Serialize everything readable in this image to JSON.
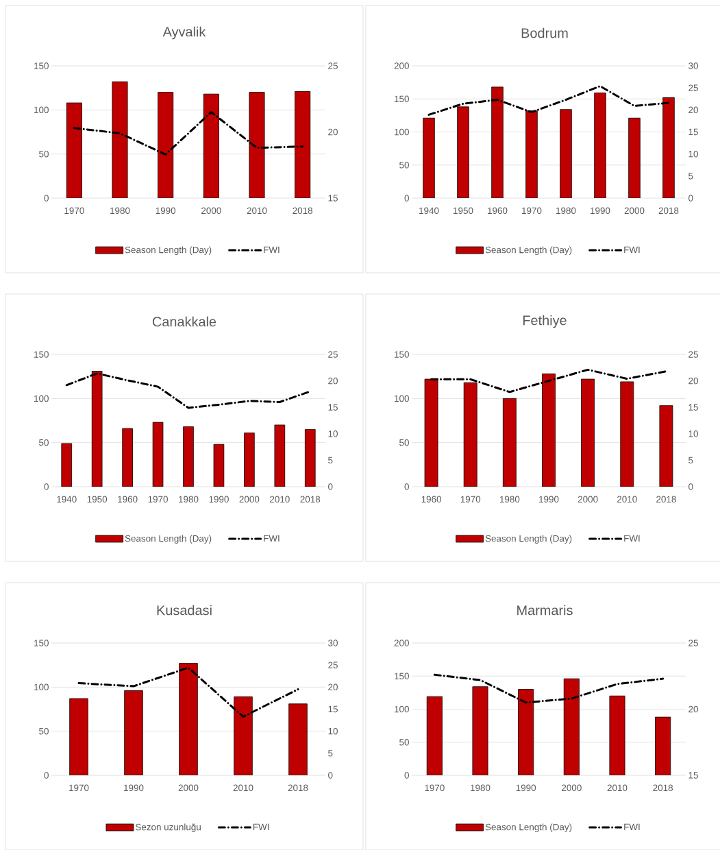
{
  "chart_data": [
    {
      "type": "bar",
      "title": "Ayvalik",
      "categories": [
        "1970",
        "1980",
        "1990",
        "2000",
        "2010",
        "2018"
      ],
      "series": [
        {
          "name": "Season Length (Day)",
          "color": "#c00000",
          "values": [
            108,
            132,
            120,
            118,
            120,
            121
          ]
        },
        {
          "name": "FWI",
          "type": "line",
          "axis": "y2",
          "color": "#000000",
          "line_style": "dashed",
          "values": [
            20.3,
            19.9,
            18.3,
            21.5,
            18.8,
            18.9
          ]
        }
      ],
      "ylim": [
        0,
        150
      ],
      "yticks": [
        0,
        50,
        100,
        150
      ],
      "y2lim": [
        15,
        25
      ],
      "y2ticks": [
        15,
        20,
        25
      ],
      "grid": "y",
      "legend": "bottom"
    },
    {
      "type": "bar",
      "title": "Bodrum",
      "categories": [
        "1940",
        "1950",
        "1960",
        "1970",
        "1980",
        "1990",
        "2000",
        "2018"
      ],
      "series": [
        {
          "name": "Season Length (Day)",
          "color": "#c00000",
          "values": [
            121,
            138,
            168,
            132,
            134,
            159,
            121,
            152
          ]
        },
        {
          "name": "FWI",
          "type": "line",
          "axis": "y2",
          "color": "#000000",
          "line_style": "dashed",
          "values": [
            18.9,
            21.4,
            22.3,
            19.5,
            22.3,
            25.4,
            20.9,
            21.6
          ]
        }
      ],
      "ylim": [
        0,
        200
      ],
      "yticks": [
        0,
        50,
        100,
        150,
        200
      ],
      "y2lim": [
        0,
        30
      ],
      "y2ticks": [
        0,
        5,
        10,
        15,
        20,
        25,
        30
      ],
      "grid": "y",
      "legend": "bottom"
    },
    {
      "type": "bar",
      "title": "Canakkale",
      "categories": [
        "1940",
        "1950",
        "1960",
        "1970",
        "1980",
        "1990",
        "2000",
        "2010",
        "2018"
      ],
      "series": [
        {
          "name": "Season Length (Day)",
          "color": "#c00000",
          "values": [
            49,
            131,
            66,
            73,
            68,
            48,
            61,
            70,
            65
          ]
        },
        {
          "name": "FWI",
          "type": "line",
          "axis": "y2",
          "color": "#000000",
          "line_style": "dashed",
          "values": [
            19.2,
            21.4,
            20.1,
            18.9,
            14.9,
            15.5,
            16.2,
            16.0,
            18.0
          ]
        }
      ],
      "ylim": [
        0,
        150
      ],
      "yticks": [
        0,
        50,
        100,
        150
      ],
      "y2lim": [
        0,
        25
      ],
      "y2ticks": [
        0,
        5,
        10,
        15,
        20,
        25
      ],
      "grid": "y",
      "legend": "bottom"
    },
    {
      "type": "bar",
      "title": "Fethiye",
      "categories": [
        "1960",
        "1970",
        "1980",
        "1990",
        "2000",
        "2010",
        "2018"
      ],
      "series": [
        {
          "name": "Season Length (Day)",
          "color": "#c00000",
          "values": [
            122,
            118,
            100,
            128,
            122,
            119,
            92
          ]
        },
        {
          "name": "FWI",
          "type": "line",
          "axis": "y2",
          "color": "#000000",
          "line_style": "dashed",
          "values": [
            20.3,
            20.3,
            17.9,
            20.0,
            22.1,
            20.4,
            21.8
          ]
        }
      ],
      "ylim": [
        0,
        150
      ],
      "yticks": [
        0,
        50,
        100,
        150
      ],
      "y2lim": [
        0,
        25
      ],
      "y2ticks": [
        0,
        5,
        10,
        15,
        20,
        25
      ],
      "grid": "y",
      "legend": "bottom"
    },
    {
      "type": "bar",
      "title": "Kusadasi",
      "categories": [
        "1970",
        "1990",
        "2000",
        "2010",
        "2018"
      ],
      "series": [
        {
          "name": "Sezon uzunluğu",
          "color": "#c00000",
          "values": [
            87,
            96,
            127,
            89,
            81
          ]
        },
        {
          "name": "FWI",
          "type": "line",
          "axis": "y2",
          "color": "#000000",
          "line_style": "dashed",
          "values": [
            20.9,
            20.2,
            24.4,
            13.3,
            19.5
          ]
        }
      ],
      "ylim": [
        0,
        150
      ],
      "yticks": [
        0,
        50,
        100,
        150
      ],
      "y2lim": [
        0,
        30
      ],
      "y2ticks": [
        0,
        5,
        10,
        15,
        20,
        25,
        30
      ],
      "grid": "y",
      "legend": "bottom"
    },
    {
      "type": "bar",
      "title": "Marmaris",
      "categories": [
        "1970",
        "1980",
        "1990",
        "2000",
        "2010",
        "2018"
      ],
      "series": [
        {
          "name": "Season Length (Day)",
          "color": "#c00000",
          "values": [
            119,
            134,
            130,
            146,
            120,
            88
          ]
        },
        {
          "name": "FWI",
          "type": "line",
          "axis": "y2",
          "color": "#000000",
          "line_style": "dashed",
          "values": [
            22.6,
            22.2,
            20.5,
            20.8,
            21.9,
            22.3
          ]
        }
      ],
      "ylim": [
        0,
        200
      ],
      "yticks": [
        0,
        50,
        100,
        150,
        200
      ],
      "y2lim": [
        15,
        25
      ],
      "y2ticks": [
        15,
        20,
        25
      ],
      "grid": "y",
      "legend": "bottom"
    }
  ]
}
